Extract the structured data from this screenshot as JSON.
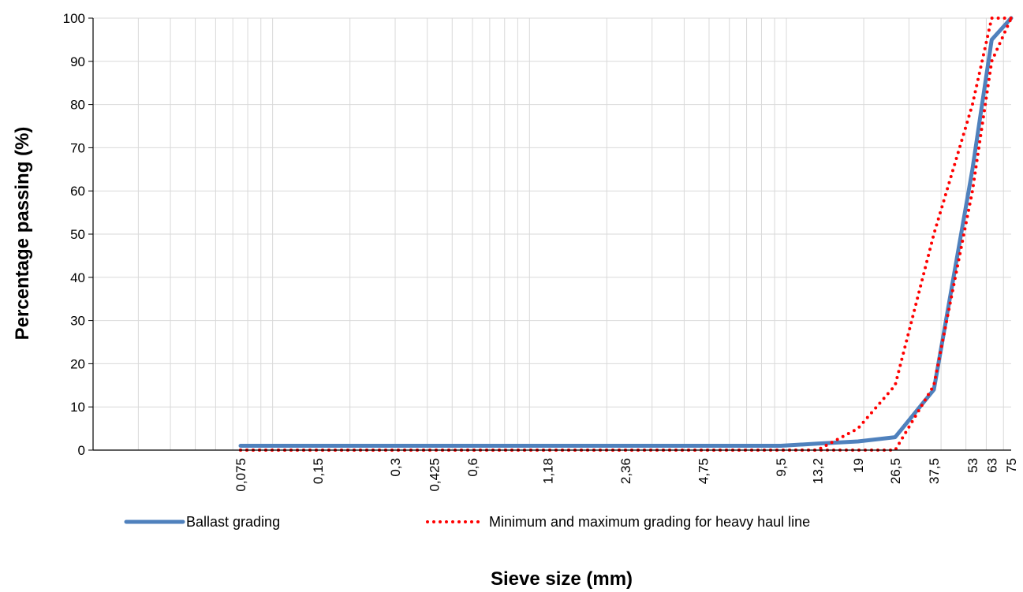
{
  "chart_data": {
    "type": "line",
    "title": "",
    "xlabel": "Sieve size (mm)",
    "ylabel": "Percentage passing (%)",
    "x_scale": "log",
    "x_ticks": [
      "0,075",
      "0,15",
      "0,3",
      "0,425",
      "0,6",
      "1,18",
      "2,36",
      "4,75",
      "9,5",
      "13,2",
      "19",
      "26,5",
      "37,5",
      "53",
      "63",
      "75"
    ],
    "ylim": [
      0,
      100
    ],
    "y_ticks": [
      0,
      10,
      20,
      30,
      40,
      50,
      60,
      70,
      80,
      90,
      100
    ],
    "grid": true,
    "legend_position": "bottom",
    "colors": {
      "ballast": "#4f81bd",
      "limits": "#ff0000",
      "grid": "#d9d9d9",
      "axis": "#000000"
    },
    "series": [
      {
        "name": "Ballast grading",
        "style": "solid",
        "points": [
          {
            "x": "0,075",
            "y": 1
          },
          {
            "x": "0,15",
            "y": 1
          },
          {
            "x": "0,3",
            "y": 1
          },
          {
            "x": "0,425",
            "y": 1
          },
          {
            "x": "0,6",
            "y": 1
          },
          {
            "x": "1,18",
            "y": 1
          },
          {
            "x": "2,36",
            "y": 1
          },
          {
            "x": "4,75",
            "y": 1
          },
          {
            "x": "9,5",
            "y": 1
          },
          {
            "x": "13,2",
            "y": 1.5
          },
          {
            "x": "19",
            "y": 2
          },
          {
            "x": "26,5",
            "y": 3
          },
          {
            "x": "37,5",
            "y": 14
          },
          {
            "x": "53",
            "y": 65
          },
          {
            "x": "63",
            "y": 95
          },
          {
            "x": "75",
            "y": 100
          }
        ]
      },
      {
        "name": "Minimum and maximum grading for heavy haul line",
        "style": "dotted",
        "points": [
          {
            "x": "0,075",
            "y": 0
          },
          {
            "x": "0,15",
            "y": 0
          },
          {
            "x": "0,3",
            "y": 0
          },
          {
            "x": "0,425",
            "y": 0
          },
          {
            "x": "0,6",
            "y": 0
          },
          {
            "x": "1,18",
            "y": 0
          },
          {
            "x": "2,36",
            "y": 0
          },
          {
            "x": "4,75",
            "y": 0
          },
          {
            "x": "9,5",
            "y": 0
          },
          {
            "x": "13,2",
            "y": 0
          },
          {
            "x": "19",
            "y": 5
          },
          {
            "x": "26,5",
            "y": 15
          },
          {
            "x": "37,5",
            "y": 50
          },
          {
            "x": "53",
            "y": 80
          },
          {
            "x": "63",
            "y": 100
          },
          {
            "x": "75",
            "y": 100
          }
        ]
      },
      {
        "name": "",
        "style": "dotted",
        "points": [
          {
            "x": "0,075",
            "y": 0
          },
          {
            "x": "0,15",
            "y": 0
          },
          {
            "x": "0,3",
            "y": 0
          },
          {
            "x": "0,425",
            "y": 0
          },
          {
            "x": "0,6",
            "y": 0
          },
          {
            "x": "1,18",
            "y": 0
          },
          {
            "x": "2,36",
            "y": 0
          },
          {
            "x": "4,75",
            "y": 0
          },
          {
            "x": "9,5",
            "y": 0
          },
          {
            "x": "13,2",
            "y": 0
          },
          {
            "x": "19",
            "y": 0
          },
          {
            "x": "26,5",
            "y": 0
          },
          {
            "x": "37,5",
            "y": 15
          },
          {
            "x": "53",
            "y": 60
          },
          {
            "x": "63",
            "y": 90
          },
          {
            "x": "75",
            "y": 100
          }
        ]
      }
    ]
  }
}
